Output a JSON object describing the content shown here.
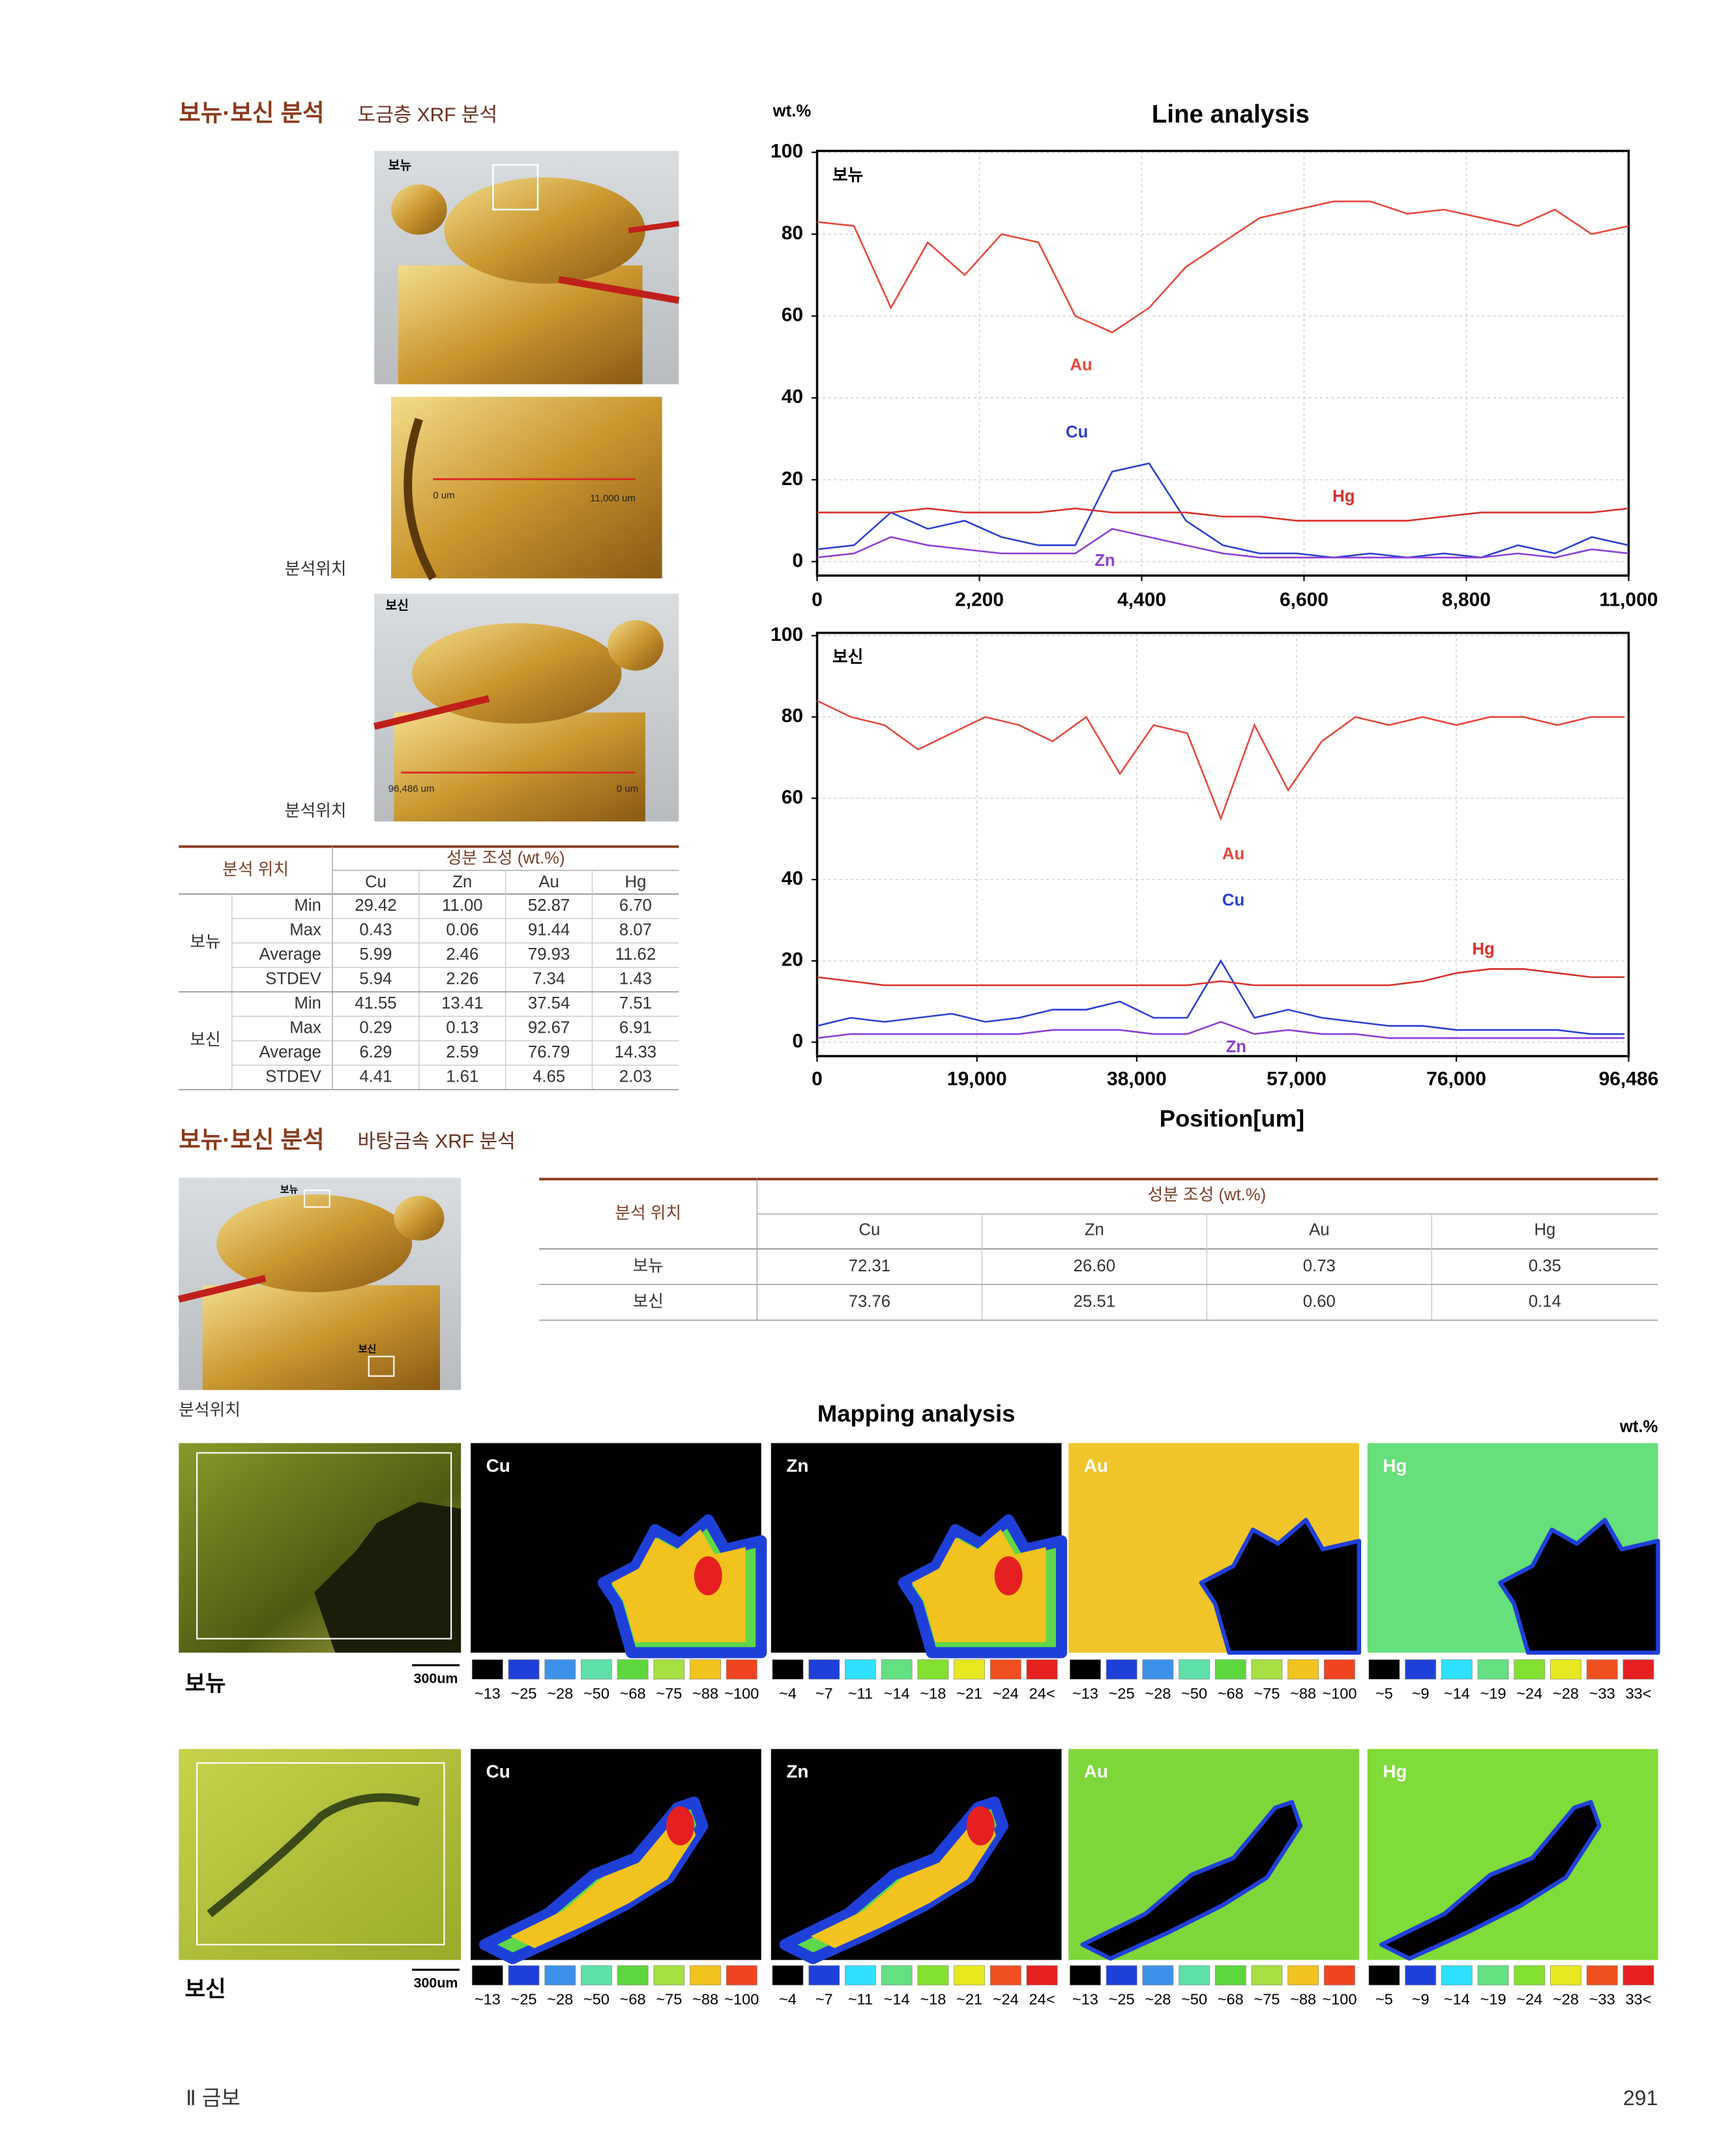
{
  "section1": {
    "title": "보뉴·보신 분석",
    "subtitle": "도금층 XRF 분석"
  },
  "photos": [
    {
      "label": "보뉴"
    },
    {
      "scale": [
        "0 um",
        "11,000 um"
      ],
      "caption": "분석위치"
    },
    {
      "label": "보신",
      "scale": [
        "96,486 um",
        "0 um"
      ],
      "caption": "분석위치"
    }
  ],
  "table1": {
    "header": {
      "location": "분석 위치",
      "composition": "성분 조성 (wt.%)",
      "elements": [
        "Cu",
        "Zn",
        "Au",
        "Hg"
      ]
    },
    "groups": [
      {
        "name": "보뉴",
        "rows": [
          {
            "stat": "Min",
            "values": [
              "29.42",
              "11.00",
              "52.87",
              "6.70"
            ]
          },
          {
            "stat": "Max",
            "values": [
              "0.43",
              "0.06",
              "91.44",
              "8.07"
            ]
          },
          {
            "stat": "Average",
            "values": [
              "5.99",
              "2.46",
              "79.93",
              "11.62"
            ]
          },
          {
            "stat": "STDEV",
            "values": [
              "5.94",
              "2.26",
              "7.34",
              "1.43"
            ]
          }
        ]
      },
      {
        "name": "보신",
        "rows": [
          {
            "stat": "Min",
            "values": [
              "41.55",
              "13.41",
              "37.54",
              "7.51"
            ]
          },
          {
            "stat": "Max",
            "values": [
              "0.29",
              "0.13",
              "92.67",
              "6.91"
            ]
          },
          {
            "stat": "Average",
            "values": [
              "6.29",
              "2.59",
              "76.79",
              "14.33"
            ]
          },
          {
            "stat": "STDEV",
            "values": [
              "4.41",
              "1.61",
              "4.65",
              "2.03"
            ]
          }
        ]
      }
    ]
  },
  "chart_data": [
    {
      "type": "line",
      "title": "Line analysis",
      "ylabel": "wt.%",
      "annotation": "보뉴",
      "grid": true,
      "x": [
        0,
        500,
        1000,
        1500,
        2000,
        2500,
        3000,
        3500,
        4000,
        4500,
        5000,
        5500,
        6000,
        6500,
        7000,
        7500,
        8000,
        8500,
        9000,
        9500,
        10000,
        10500,
        11000
      ],
      "xlim": [
        0,
        11000
      ],
      "xticks": [
        0,
        {
          "value": 2200,
          "label": "2,200"
        },
        {
          "value": 4400,
          "label": "4,400"
        },
        {
          "value": 6600,
          "label": "6,600"
        },
        {
          "value": 8800,
          "label": "8,800"
        },
        {
          "value": 11000,
          "label": "11,000"
        }
      ],
      "ylim": [
        0,
        100
      ],
      "yticks": [
        0,
        20,
        40,
        60,
        80,
        100
      ],
      "series": [
        {
          "name": "Au",
          "color": "#e8483c",
          "values": [
            83,
            82,
            62,
            78,
            70,
            80,
            78,
            60,
            56,
            62,
            72,
            78,
            84,
            86,
            88,
            88,
            85,
            86,
            84,
            82,
            86,
            80,
            82
          ]
        },
        {
          "name": "Cu",
          "color": "#2b3fd0",
          "values": [
            3,
            4,
            12,
            8,
            10,
            6,
            4,
            4,
            22,
            24,
            10,
            4,
            2,
            2,
            1,
            2,
            1,
            2,
            1,
            4,
            2,
            6,
            4
          ]
        },
        {
          "name": "Hg",
          "color": "#d9302a",
          "values": [
            12,
            12,
            12,
            13,
            12,
            12,
            12,
            13,
            12,
            12,
            12,
            11,
            11,
            10,
            10,
            10,
            10,
            11,
            12,
            12,
            12,
            12,
            13
          ]
        },
        {
          "name": "Zn",
          "color": "#8c3fd4",
          "values": [
            1,
            2,
            6,
            4,
            3,
            2,
            2,
            2,
            8,
            6,
            4,
            2,
            1,
            1,
            1,
            1,
            1,
            1,
            1,
            2,
            1,
            3,
            2
          ]
        }
      ]
    },
    {
      "type": "line",
      "xlabel": "Position[um]",
      "annotation": "보신",
      "grid": true,
      "x": [
        0,
        4000,
        8000,
        12000,
        16000,
        20000,
        24000,
        28000,
        32000,
        36000,
        40000,
        44000,
        48000,
        52000,
        56000,
        60000,
        64000,
        68000,
        72000,
        76000,
        80000,
        84000,
        88000,
        92000,
        96000
      ],
      "xlim": [
        0,
        96486
      ],
      "xticks": [
        0,
        {
          "value": 19000,
          "label": "19,000"
        },
        {
          "value": 38000,
          "label": "38,000"
        },
        {
          "value": 57000,
          "label": "57,000"
        },
        {
          "value": 76000,
          "label": "76,000"
        },
        {
          "value": 96486,
          "label": "96,486"
        }
      ],
      "ylim": [
        0,
        100
      ],
      "yticks": [
        0,
        20,
        40,
        60,
        80,
        100
      ],
      "series": [
        {
          "name": "Au",
          "color": "#e8483c",
          "values": [
            84,
            80,
            78,
            72,
            76,
            80,
            78,
            74,
            80,
            66,
            78,
            76,
            55,
            78,
            62,
            74,
            80,
            78,
            80,
            78,
            80,
            80,
            78,
            80,
            80
          ]
        },
        {
          "name": "Cu",
          "color": "#2b3fd0",
          "values": [
            4,
            6,
            5,
            6,
            7,
            5,
            6,
            8,
            8,
            10,
            6,
            6,
            20,
            6,
            8,
            6,
            5,
            4,
            4,
            3,
            3,
            3,
            3,
            2,
            2
          ]
        },
        {
          "name": "Hg",
          "color": "#d9302a",
          "values": [
            16,
            15,
            14,
            14,
            14,
            14,
            14,
            14,
            14,
            14,
            14,
            14,
            15,
            14,
            14,
            14,
            14,
            14,
            15,
            17,
            18,
            18,
            17,
            16,
            16
          ]
        },
        {
          "name": "Zn",
          "color": "#8c3fd4",
          "values": [
            1,
            2,
            2,
            2,
            2,
            2,
            2,
            3,
            3,
            3,
            2,
            2,
            5,
            2,
            3,
            2,
            2,
            1,
            1,
            1,
            1,
            1,
            1,
            1,
            1
          ]
        }
      ]
    }
  ],
  "section2": {
    "title": "보뉴·보신 분석",
    "subtitle": "바탕금속 XRF 분석"
  },
  "base_photo": {
    "labels": [
      "보뉴",
      "보신"
    ],
    "caption": "분석위치"
  },
  "table2": {
    "header": {
      "location": "분석 위치",
      "composition": "성분 조성 (wt.%)",
      "elements": [
        "Cu",
        "Zn",
        "Au",
        "Hg"
      ]
    },
    "rows": [
      {
        "name": "보뉴",
        "values": [
          "72.31",
          "26.60",
          "0.73",
          "0.35"
        ]
      },
      {
        "name": "보신",
        "values": [
          "73.76",
          "25.51",
          "0.60",
          "0.14"
        ]
      }
    ]
  },
  "mapping": {
    "title": "Mapping analysis",
    "unit": "wt.%",
    "rows": [
      {
        "label": "보뉴",
        "scale": "300um"
      },
      {
        "label": "보신",
        "scale": "300um"
      }
    ],
    "panels": [
      "Cu",
      "Zn",
      "Au",
      "Hg"
    ],
    "legends": [
      {
        "labels": [
          "~13",
          "~25",
          "~28",
          "~50",
          "~68",
          "~75",
          "~88",
          "~100"
        ],
        "colors": [
          "#000000",
          "#1f40d8",
          "#3c92ea",
          "#5fe0a8",
          "#5cd83e",
          "#a6e042",
          "#f2c21e",
          "#f04420"
        ]
      },
      {
        "labels": [
          "~4",
          "~7",
          "~11",
          "~14",
          "~18",
          "~21",
          "~24",
          "24<"
        ],
        "colors": [
          "#000000",
          "#1f40d8",
          "#30e0ff",
          "#62e082",
          "#82e030",
          "#e8e820",
          "#f05020",
          "#e62020"
        ]
      },
      {
        "labels": [
          "~13",
          "~25",
          "~28",
          "~50",
          "~68",
          "~75",
          "~88",
          "~100"
        ],
        "colors": [
          "#000000",
          "#1f40d8",
          "#3c92ea",
          "#5fe0a8",
          "#5cd83e",
          "#a6e042",
          "#f2c21e",
          "#f04420"
        ]
      },
      {
        "labels": [
          "~5",
          "~9",
          "~14",
          "~19",
          "~24",
          "~28",
          "~33",
          "33<"
        ],
        "colors": [
          "#000000",
          "#1f40d8",
          "#30e0ff",
          "#62e082",
          "#82e030",
          "#e8e820",
          "#f05020",
          "#e62020"
        ]
      }
    ]
  },
  "footer": {
    "section": "Ⅱ 금보",
    "page": "291"
  }
}
